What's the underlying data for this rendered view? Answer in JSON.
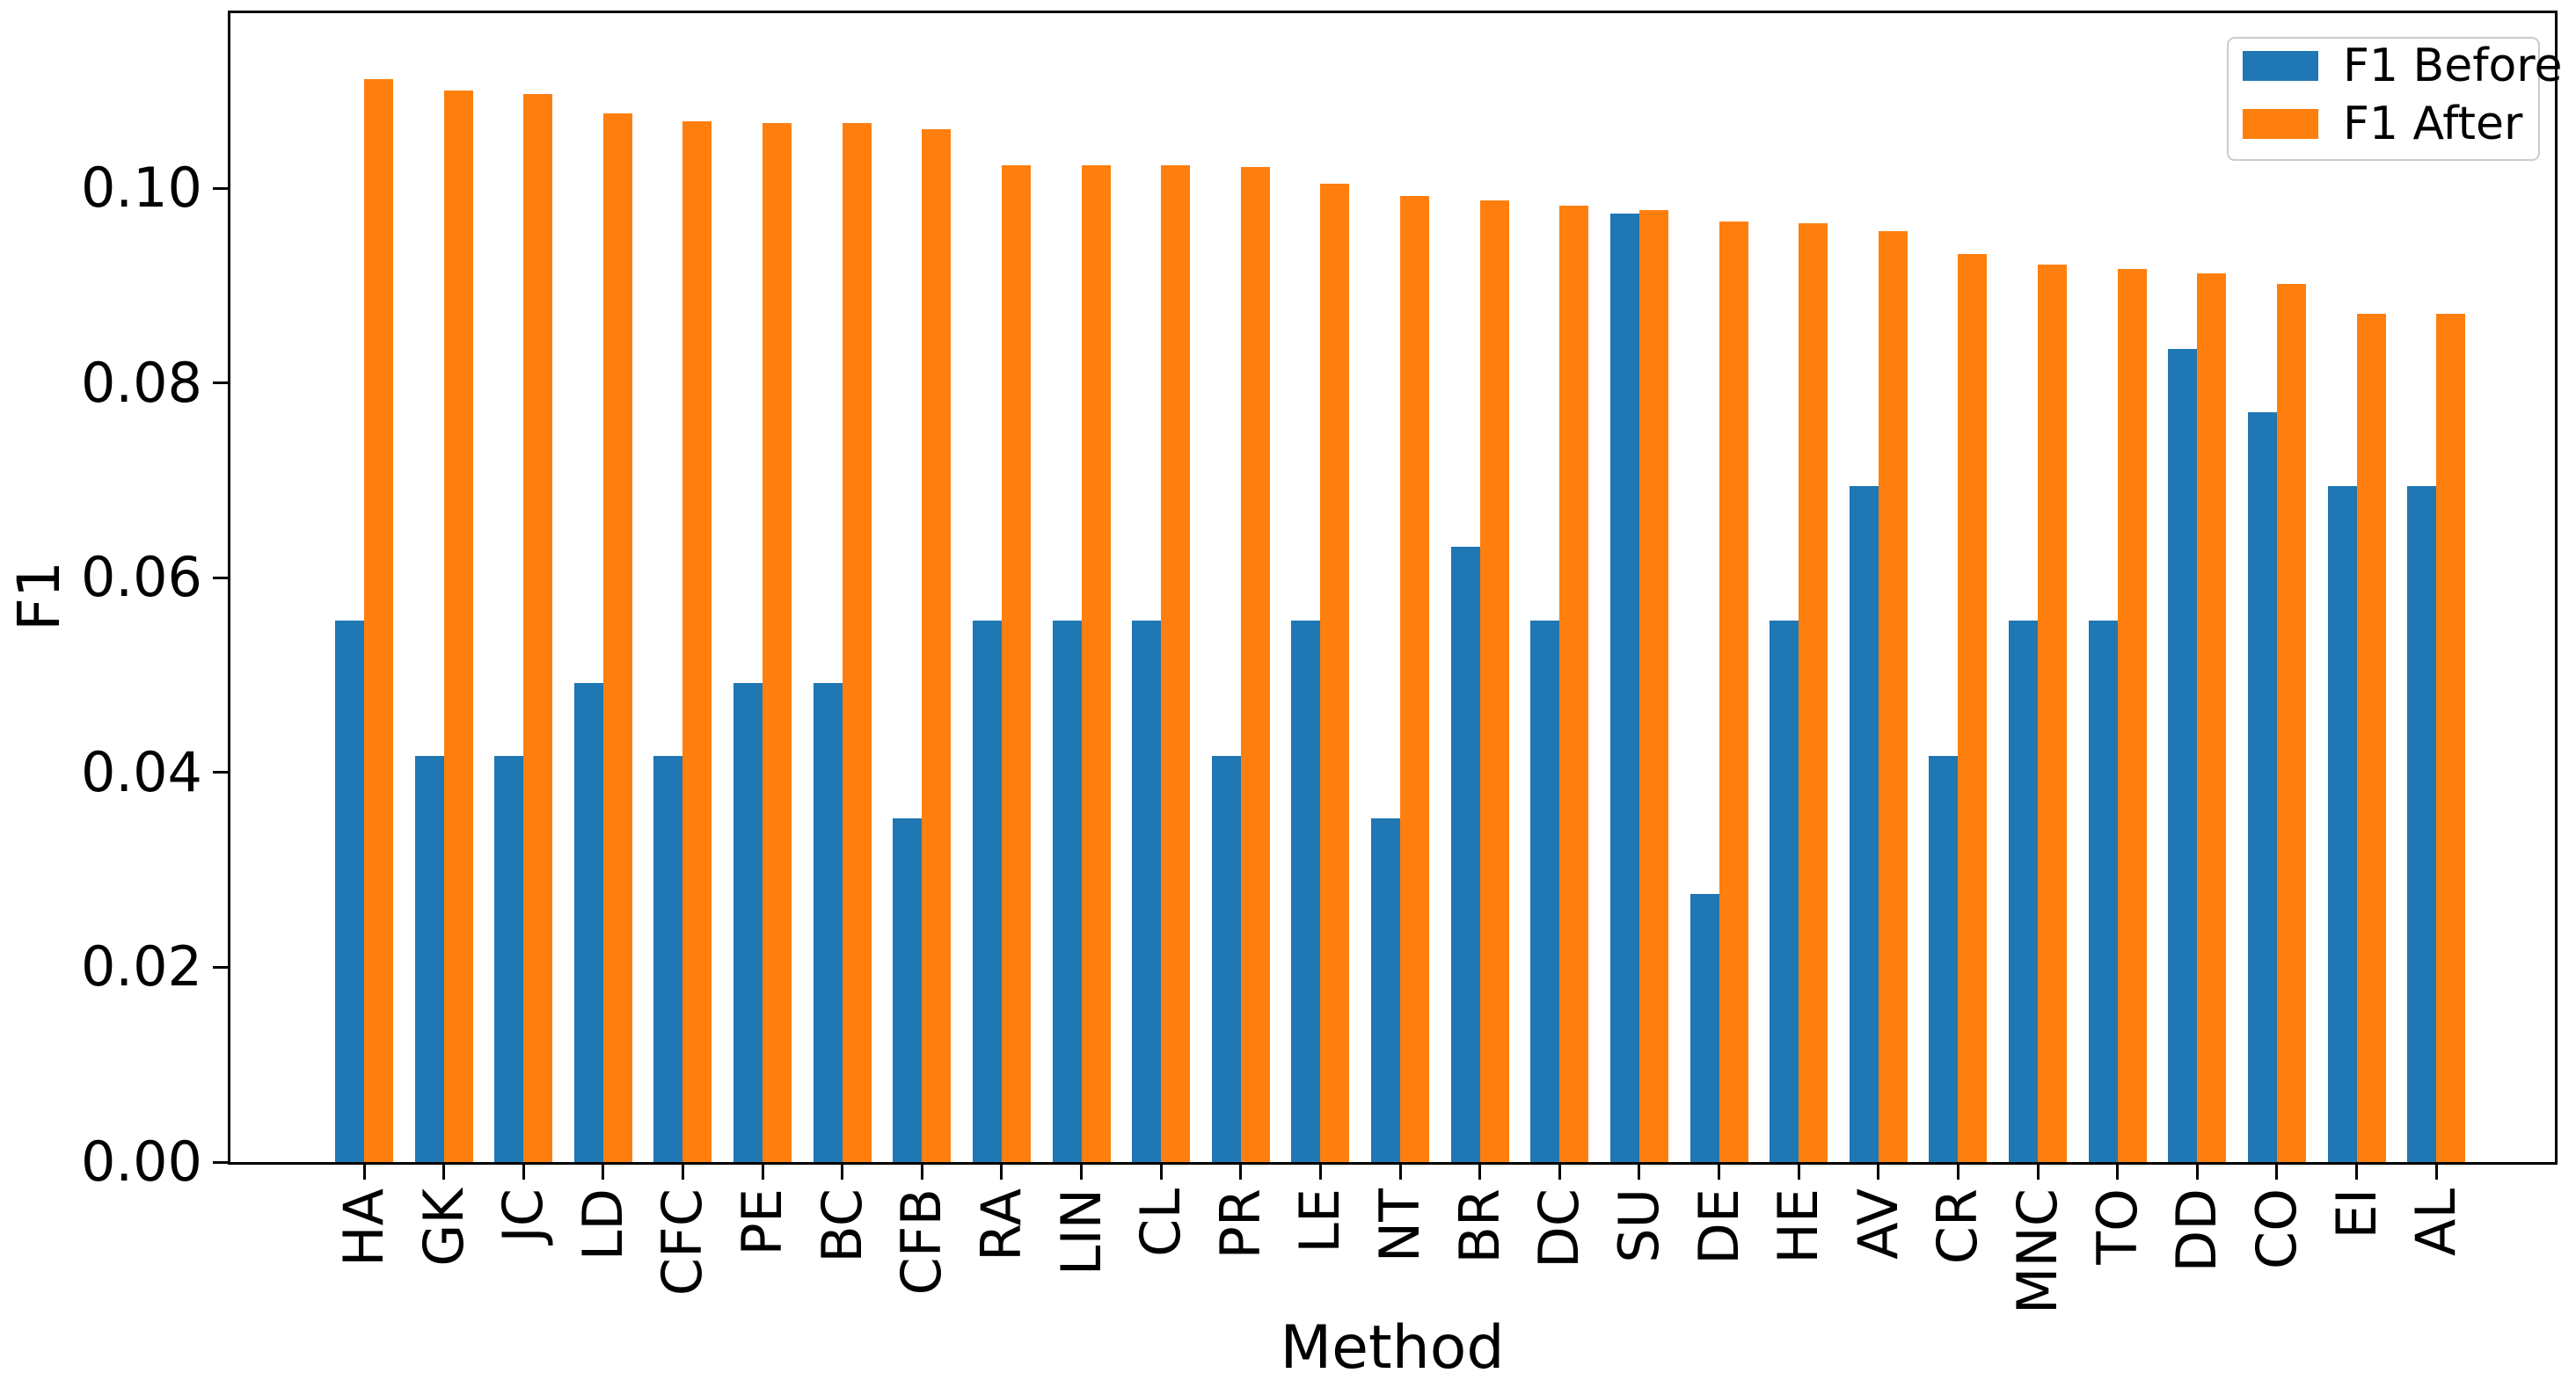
{
  "chart_data": {
    "type": "bar",
    "title": "",
    "xlabel": "Method",
    "ylabel": "F1",
    "categories": [
      "HA",
      "GK",
      "JC",
      "LD",
      "CFC",
      "PE",
      "BC",
      "CFB",
      "RA",
      "LIN",
      "CL",
      "PR",
      "LE",
      "NT",
      "BR",
      "DC",
      "SU",
      "DE",
      "HE",
      "AV",
      "CR",
      "MNC",
      "TO",
      "DD",
      "CO",
      "EI",
      "AL"
    ],
    "series": [
      {
        "name": "F1 Before",
        "color": "#1f77b4",
        "values": [
          0.0556,
          0.0417,
          0.0417,
          0.0492,
          0.0417,
          0.0492,
          0.0492,
          0.0353,
          0.0556,
          0.0556,
          0.0556,
          0.0417,
          0.0556,
          0.0353,
          0.0632,
          0.0556,
          0.0974,
          0.0275,
          0.0556,
          0.0694,
          0.0417,
          0.0556,
          0.0556,
          0.0835,
          0.077,
          0.0694,
          0.0694
        ]
      },
      {
        "name": "F1 After",
        "color": "#ff7f0e",
        "values": [
          0.1112,
          0.1101,
          0.1097,
          0.1077,
          0.1069,
          0.1067,
          0.1067,
          0.1061,
          0.1024,
          0.1024,
          0.1024,
          0.1022,
          0.1005,
          0.0992,
          0.0988,
          0.0982,
          0.0978,
          0.0966,
          0.0964,
          0.0956,
          0.0933,
          0.0922,
          0.0917,
          0.0913,
          0.0902,
          0.0871,
          0.0871
        ]
      }
    ],
    "ylim": [
      0,
      0.118
    ],
    "yticks": [
      {
        "value": 0.0,
        "label": "0.00"
      },
      {
        "value": 0.02,
        "label": "0.02"
      },
      {
        "value": 0.04,
        "label": "0.04"
      },
      {
        "value": 0.06,
        "label": "0.06"
      },
      {
        "value": 0.08,
        "label": "0.08"
      },
      {
        "value": 0.1,
        "label": "0.10"
      }
    ],
    "legend_position": "upper right",
    "grid": false,
    "bar_orientation": "vertical"
  }
}
